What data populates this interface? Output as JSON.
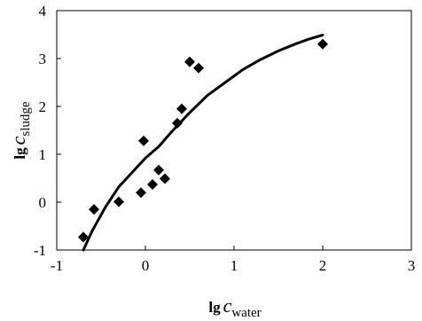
{
  "chart_data": {
    "type": "scatter",
    "title": "",
    "xlabel": {
      "prefix": "lg",
      "symbol": "c",
      "subscript": "water"
    },
    "ylabel": {
      "prefix": "lg",
      "symbol": "c",
      "subscript": "sludge"
    },
    "xlim": [
      -1,
      3
    ],
    "ylim": [
      -1,
      4
    ],
    "xticks": [
      "-1",
      "0",
      "1",
      "2",
      "3"
    ],
    "yticks": [
      "-1",
      "0",
      "1",
      "2",
      "3",
      "4"
    ],
    "grid": false,
    "legend": "none",
    "series": [
      {
        "kind": "scatter",
        "marker": "diamond",
        "color": "#000000",
        "points": [
          [
            -0.7,
            -0.73
          ],
          [
            -0.58,
            -0.15
          ],
          [
            -0.3,
            0.01
          ],
          [
            -0.05,
            0.2
          ],
          [
            -0.02,
            1.28
          ],
          [
            0.08,
            0.37
          ],
          [
            0.15,
            0.67
          ],
          [
            0.22,
            0.49
          ],
          [
            0.36,
            1.65
          ],
          [
            0.41,
            1.95
          ],
          [
            0.5,
            2.93
          ],
          [
            0.6,
            2.8
          ],
          [
            2.0,
            3.3
          ]
        ]
      },
      {
        "kind": "line",
        "color": "#000000",
        "points": [
          [
            -0.7,
            -1.0
          ],
          [
            -0.6,
            -0.6
          ],
          [
            -0.45,
            -0.1
          ],
          [
            -0.3,
            0.32
          ],
          [
            -0.15,
            0.62
          ],
          [
            0.0,
            0.92
          ],
          [
            0.15,
            1.16
          ],
          [
            0.3,
            1.48
          ],
          [
            0.5,
            1.87
          ],
          [
            0.7,
            2.23
          ],
          [
            0.9,
            2.5
          ],
          [
            1.1,
            2.77
          ],
          [
            1.3,
            2.98
          ],
          [
            1.5,
            3.16
          ],
          [
            1.7,
            3.31
          ],
          [
            1.85,
            3.41
          ],
          [
            2.0,
            3.49
          ]
        ]
      }
    ]
  }
}
